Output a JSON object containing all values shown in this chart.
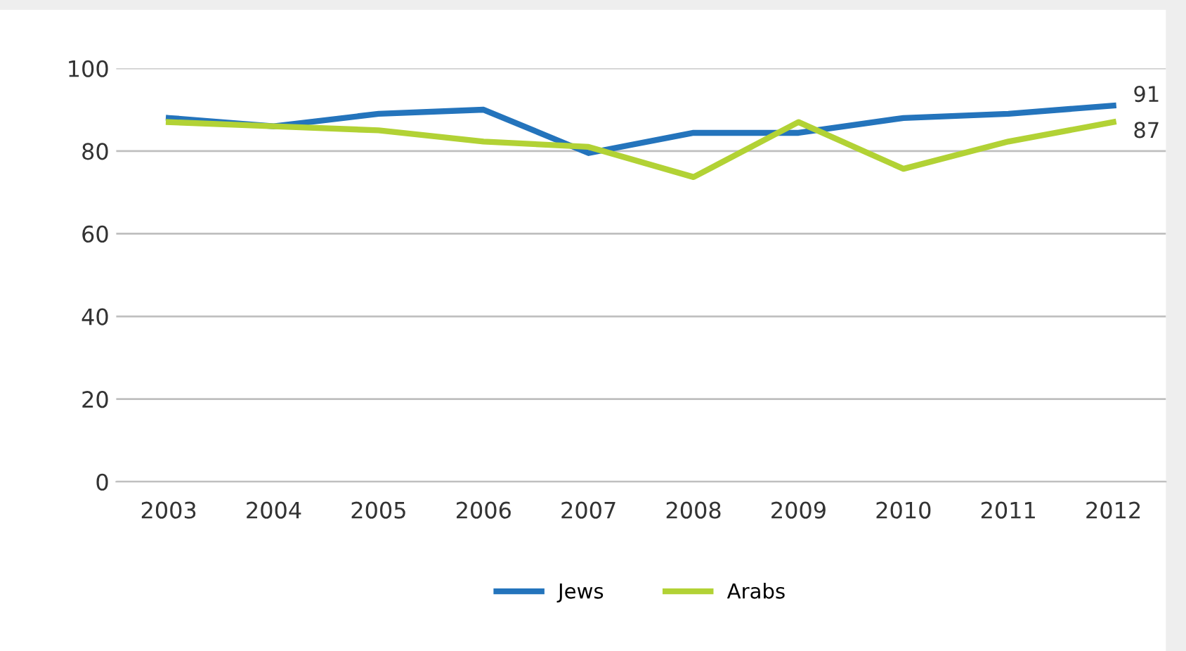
{
  "chart_data": {
    "type": "line",
    "categories": [
      "2003",
      "2004",
      "2005",
      "2006",
      "2007",
      "2008",
      "2009",
      "2010",
      "2011",
      "2012"
    ],
    "series": [
      {
        "name": "Jews",
        "color": "#2474bc",
        "values": [
          88,
          86,
          89,
          90,
          79.5,
          84.4,
          84.4,
          88,
          89,
          91
        ]
      },
      {
        "name": "Arabs",
        "color": "#b2d235",
        "values": [
          87,
          86,
          85,
          82.3,
          81,
          73.7,
          87,
          75.7,
          82.3,
          87
        ]
      }
    ],
    "annotations": [
      {
        "text": "91",
        "x": "2012",
        "y": 91
      },
      {
        "text": "87",
        "x": "2012",
        "y": 87
      }
    ],
    "ylim": [
      0,
      100
    ],
    "yticks": [
      0,
      20,
      40,
      60,
      80,
      100
    ],
    "grid": "y",
    "legend": "bottom",
    "marker": "none",
    "line_style": "solid"
  }
}
